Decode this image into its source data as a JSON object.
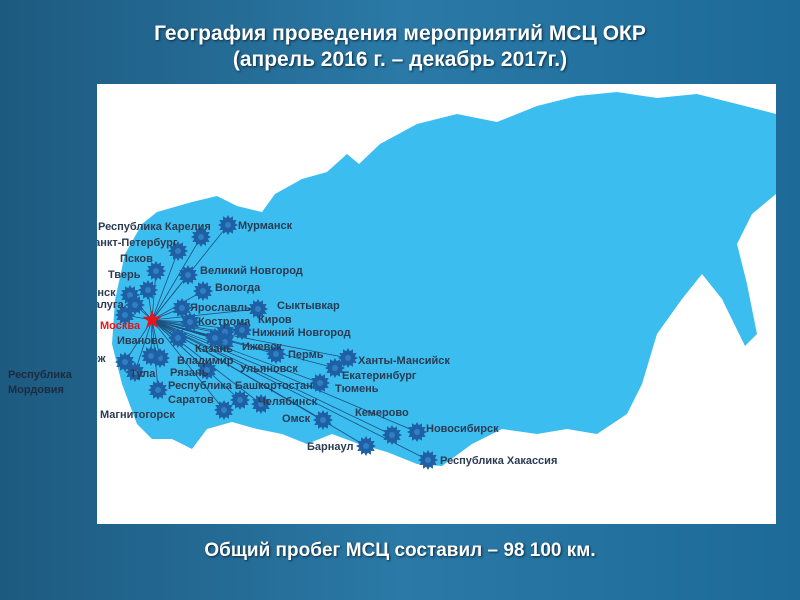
{
  "slide": {
    "title_line1": "География проведения мероприятий МСЦ ОКР",
    "title_line2": "(апрель 2016 г. – декабрь 2017г.)",
    "total_text": "Общий пробег МСЦ составил – 98 100 км."
  },
  "map": {
    "land_color": "#3bbdf0",
    "marker_color": "#1f5fa3",
    "origin_color": "#e8141b",
    "origin": "Москва",
    "cities": [
      "Мурманск",
      "Республика Карелия",
      "Санкт-Петербург",
      "Псков",
      "Тверь",
      "Великий Новгород",
      "Вологда",
      "Смоленск",
      "Калуга",
      "Брянск",
      "Иваново",
      "Ярославль",
      "Кострома",
      "Сыктывкар",
      "Киров",
      "Нижний Новгород",
      "Ижевск",
      "Казань",
      "Пермь",
      "Воронеж",
      "Владимир",
      "Рязань",
      "Ульяновск",
      "Тула",
      "Республика Мордовия",
      "Республика Башкортостан",
      "Саратов",
      "Челябинск",
      "Магнитогорск",
      "Ханты-Мансийск",
      "Екатеринбург",
      "Тюмень",
      "Омск",
      "Кемерово",
      "Новосибирск",
      "Барнаул",
      "Республика Хакассия"
    ]
  }
}
